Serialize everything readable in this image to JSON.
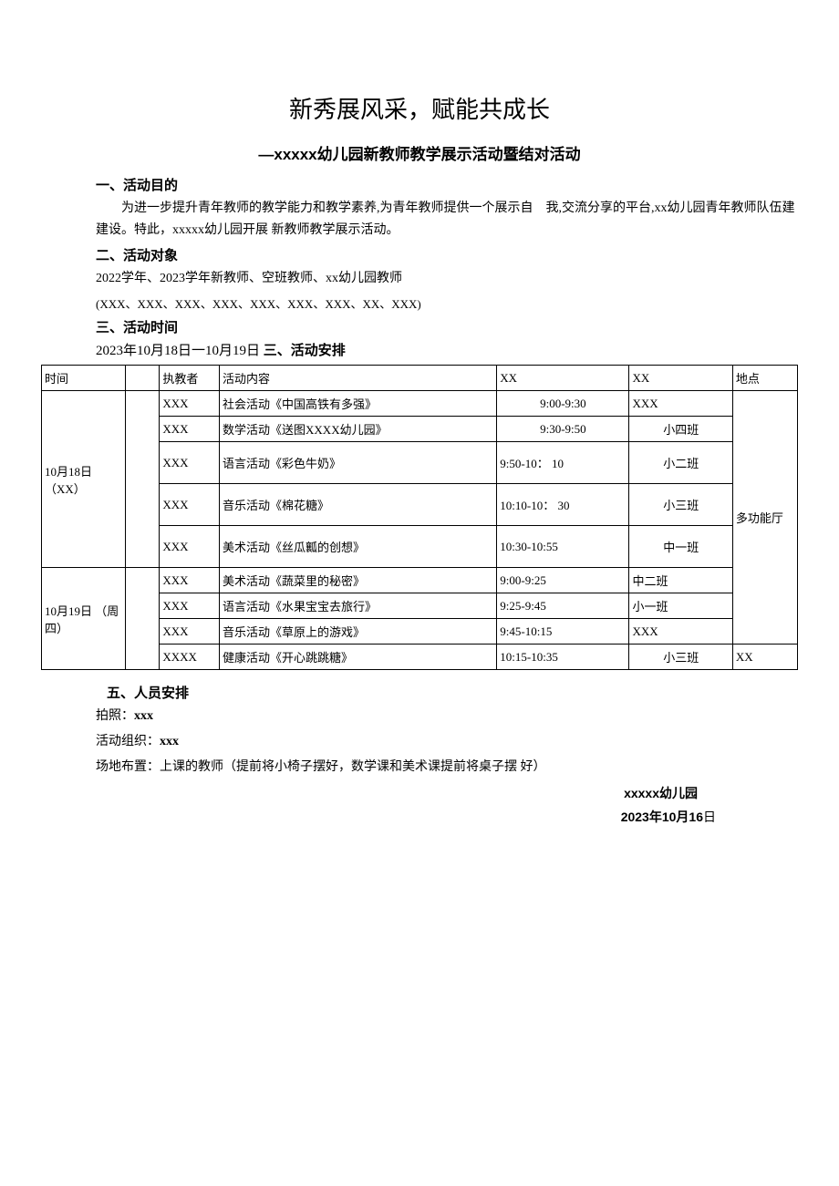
{
  "title": "新秀展风采，赋能共成长",
  "subtitle": "—xxxxx幼儿园新教师教学展示活动暨结对活动",
  "s1": {
    "heading": "一、活动目的",
    "para": "为进一步提升青年教师的教学能力和教学素养,为青年教师提供一个展示自　我,交流分享的平台,xx幼儿园青年教师队伍建建设。特此，xxxxx幼儿园开展 新教师教学展示活动。"
  },
  "s2": {
    "heading": "二、活动对象",
    "line1": "2022学年、2023学年新教师、空班教师、xx幼儿园教师",
    "line2": "(XXX、XXX、XXX、XXX、XXX、XXX、XXX、XX、XXX)"
  },
  "s3": {
    "heading": "三、活动时间",
    "line_prefix": "2023年10月18日一10月19日  ",
    "line_bold": "三、活动安排"
  },
  "table": {
    "headers": {
      "c1": "时间",
      "c2": "执教者",
      "c3": "活动内容",
      "c4": "XX",
      "c5": "XX",
      "c6": "地点"
    },
    "day1": {
      "date": "10月18日 （XX）",
      "loc": "多功能厅",
      "rows": [
        {
          "teacher": "XXX",
          "activity": "社会活动《中国高铁有多强》",
          "t1": "9:00-9:30",
          "t2": "XXX",
          "t1center": true,
          "t2left": true
        },
        {
          "teacher": "XXX",
          "activity": "数学活动《送图XXXX幼儿园》",
          "t1": "9:30-9:50",
          "t2": "小四班",
          "t1center": true
        },
        {
          "teacher": "XXX",
          "activity": "语言活动《彩色牛奶》",
          "t1": "9:50-10： 10",
          "t2": "小二班",
          "tall": true
        },
        {
          "teacher": "XXX",
          "activity": "音乐活动《棉花糖》",
          "t1": "10:10-10： 30",
          "t2": "小三班",
          "tall": true
        },
        {
          "teacher": "XXX",
          "activity": "美术活动《丝瓜瓤的创想》",
          "t1": "10:30-10:55",
          "t2": "中一班",
          "tall": true
        }
      ]
    },
    "day2": {
      "date": "10月19日 （周 四）",
      "loc": "XX",
      "rows": [
        {
          "teacher": "XXX",
          "activity": "美术活动《蔬菜里的秘密》",
          "t1": "9:00-9:25",
          "t2": "中二班",
          "t2left": true
        },
        {
          "teacher": "XXX",
          "activity": "语言活动《水果宝宝去旅行》",
          "t1": "9:25-9:45",
          "t2": "小一班",
          "t2left": true
        },
        {
          "teacher": "XXX",
          "activity": "音乐活动《草原上的游戏》",
          "t1": "9:45-10:15",
          "t2": "XXX",
          "t2left": true
        },
        {
          "teacher": "XXXX",
          "activity": "健康活动《开心跳跳糖》",
          "t1": "10:15-10:35",
          "t2": "小三班"
        }
      ]
    }
  },
  "s5": {
    "heading": "五、人员安排",
    "l1_label": "拍照：",
    "l1_val": "xxx",
    "l2_label": "活动组织：",
    "l2_val": "xxx",
    "l3": "场地布置：上课的教师（提前将小椅子摆好，数学课和美术课提前将桌子摆 好）"
  },
  "sig": {
    "org": "xxxxx幼儿园",
    "date_prefix": "2023年10月16",
    "date_suffix": "日"
  }
}
